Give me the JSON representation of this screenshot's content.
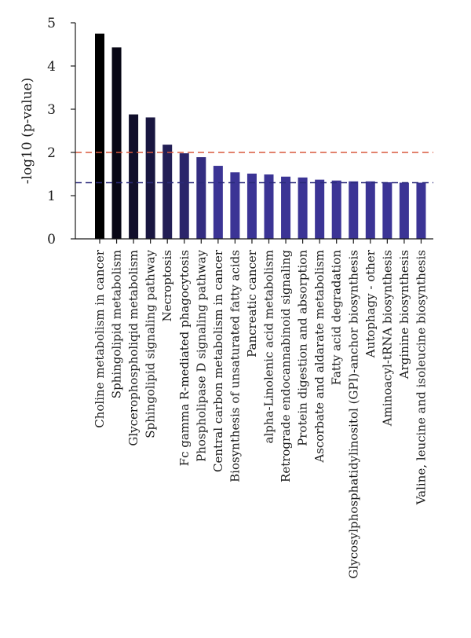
{
  "chart_data": {
    "type": "bar",
    "title": "",
    "xlabel": "",
    "ylabel": "-log10 (p-value)",
    "ylim": [
      0,
      5
    ],
    "yticks": [
      0,
      1,
      2,
      3,
      4,
      5
    ],
    "grid": false,
    "categories": [
      "Choline metabolism in cancer",
      "Sphingolipid metabolism",
      "Glycerophospholiqid metabolism",
      "Sphingolipid signaling pathway",
      "Necroptosis",
      "Fc gamma R-mediated phagocytosis",
      "Phospholipase D signaling pathway",
      "Central carbon metabolism in cancer",
      "Biosynthesis of unsaturated fatty acids",
      "Pancreatic cancer",
      "alpha-Linolenic acid metabolism",
      "Retrograde endocannabinoid signaling",
      "Protein digestion and absorption",
      "Ascorbate and aldarate metabolism",
      "Fatty acid degradation",
      "Glycosylphosphatidylinositol (GPI)-anchor biosynthesis",
      "Autophagy - other",
      "Aminoacyl-tRNA biosynthesis",
      "Arginine biosynthesis",
      "Valine, leucine and isoleucine biosynthesis"
    ],
    "values": [
      4.75,
      4.43,
      2.88,
      2.81,
      2.18,
      1.98,
      1.89,
      1.69,
      1.54,
      1.51,
      1.49,
      1.44,
      1.42,
      1.37,
      1.35,
      1.33,
      1.33,
      1.31,
      1.3,
      1.3
    ],
    "thresholds": [
      {
        "value": 2.0,
        "color": "#d9593d",
        "style": "dashed"
      },
      {
        "value": 1.3,
        "color": "#2b2a7a",
        "style": "dashed"
      }
    ],
    "colors": {
      "gradient_start": "#000000",
      "gradient_end": "#3b3495",
      "axis": "#1a1a1a"
    }
  }
}
